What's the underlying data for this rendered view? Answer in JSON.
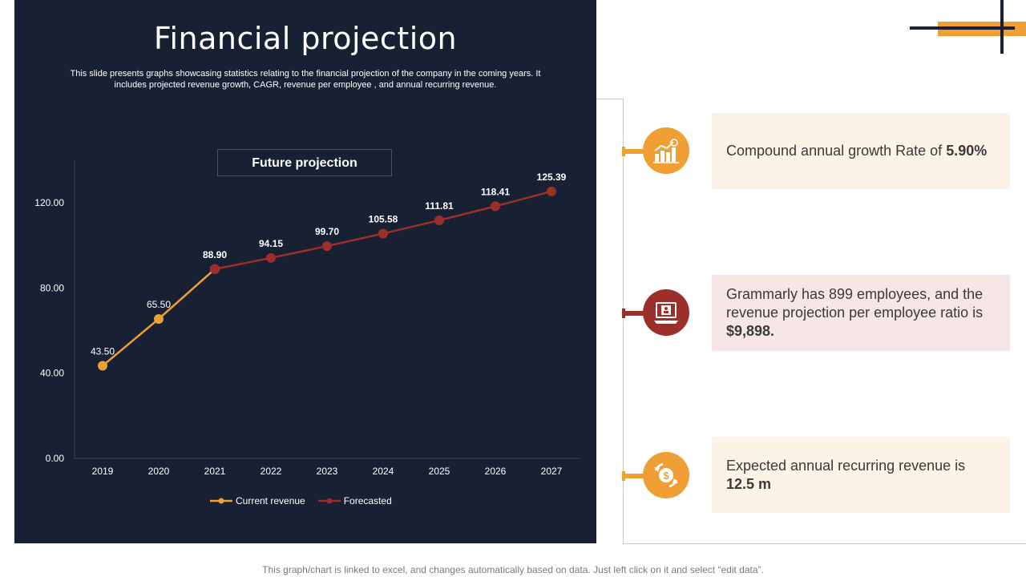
{
  "page": {
    "title": "Financial projection",
    "subtitle": "This slide presents graphs showcasing statistics relating to the financial projection of the company in the coming years. It includes projected revenue growth, CAGR, revenue per employee , and annual recurring revenue.",
    "footnote": "This graph/chart is linked to excel, and changes automatically based on data. Just left click on it and select “edit data”."
  },
  "chart_data": {
    "type": "line",
    "title": "Future projection",
    "categories": [
      "2019",
      "2020",
      "2021",
      "2022",
      "2023",
      "2024",
      "2025",
      "2026",
      "2027"
    ],
    "series": [
      {
        "name": "Current revenue",
        "color": "#ef9f33",
        "values": [
          43.5,
          65.5,
          88.9,
          null,
          null,
          null,
          null,
          null,
          null
        ],
        "labels": [
          "43.50",
          "65.50",
          "88.90",
          "",
          "",
          "",
          "",
          "",
          ""
        ]
      },
      {
        "name": "Forecasted",
        "color": "#9c2f2a",
        "values": [
          null,
          null,
          88.9,
          94.15,
          99.7,
          105.58,
          111.81,
          118.41,
          125.39
        ],
        "labels": [
          "",
          "",
          "88.90",
          "94.15",
          "99.70",
          "105.58",
          "111.81",
          "118.41",
          "125.39"
        ]
      }
    ],
    "yticks": [
      "0.00",
      "40.00",
      "80.00",
      "120.00"
    ],
    "ytick_values": [
      0,
      40,
      80,
      120
    ],
    "ylim": [
      0,
      140
    ],
    "legend_position": "bottom"
  },
  "cards": [
    {
      "icon": "growth-chart-icon",
      "text": "Compound annual growth Rate of ",
      "highlight": "5.90%",
      "accent": "#ef9f33",
      "bg": "#fdf2e6"
    },
    {
      "icon": "employee-computer-icon",
      "text": "Grammarly has 899 employees, and the revenue projection per employee ratio is ",
      "highlight": "$9,898.",
      "accent": "#9c2f2a",
      "bg": "#f6e6e5"
    },
    {
      "icon": "recurring-dollar-icon",
      "text": "Expected annual recurring revenue is ",
      "highlight": "12.5 m",
      "accent": "#ef9f33",
      "bg": "#fdf2e6"
    }
  ]
}
